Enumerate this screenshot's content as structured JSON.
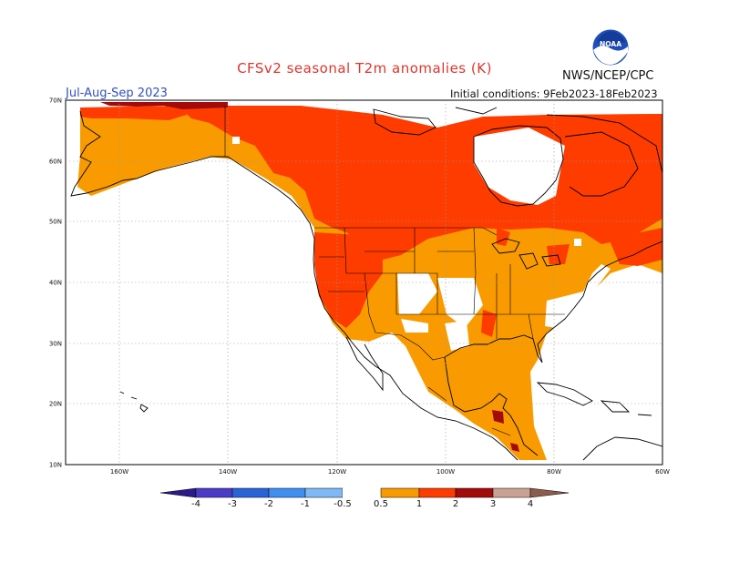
{
  "header": {
    "title": "CFSv2 seasonal T2m anomalies (K)",
    "season": "Jul-Aug-Sep 2023",
    "initial_conditions": "Initial conditions: 9Feb2023-18Feb2023",
    "agency": "NWS/NCEP/CPC",
    "logo_text": "NOAA"
  },
  "axes": {
    "lat_labels": [
      "70N",
      "60N",
      "50N",
      "40N",
      "30N",
      "20N",
      "10N"
    ],
    "lon_labels": [
      "160W",
      "140W",
      "120W",
      "100W",
      "80W",
      "60W"
    ]
  },
  "colorbar": {
    "labels": [
      "-4",
      "-3",
      "-2",
      "-1",
      "-0.5",
      "0.5",
      "1",
      "2",
      "3",
      "4"
    ],
    "colors": {
      "lt_-4": "#2a1a8a",
      "-4_-3": "#4b3cc8",
      "-3_-2": "#2a63d8",
      "-2_-1": "#3f8ef0",
      "-1_-0.5": "#7fb8f5",
      "-0.5_0.5": "#ffffff",
      "0.5_1": "#f99b00",
      "1_2": "#fe3c00",
      "2_3": "#a30b0b",
      "3_4": "#c9a293",
      "gt_4": "#8c5c4c"
    }
  },
  "colors": {
    "title": "#e0342c",
    "season": "#3050c0",
    "land_line": "#000000",
    "grid": "#999999"
  }
}
